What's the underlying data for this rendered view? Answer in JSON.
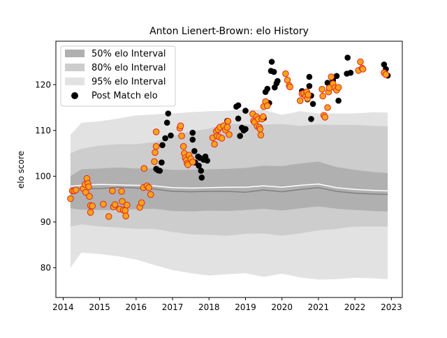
{
  "chart_data": {
    "type": "scatter",
    "title": "Anton Lienert-Brown: elo History",
    "xlabel": "",
    "ylabel": "elo score",
    "xlim": [
      2013.8,
      2023.3
    ],
    "ylim": [
      73.5,
      129.5
    ],
    "x_ticks": [
      2014,
      2015,
      2016,
      2017,
      2018,
      2019,
      2020,
      2021,
      2022,
      2023
    ],
    "y_ticks": [
      80,
      90,
      100,
      110,
      120
    ],
    "grid": false,
    "legend_position": "upper-left",
    "legend": [
      {
        "label": "50% elo Interval",
        "kind": "band",
        "color": "#b0b0b0"
      },
      {
        "label": "80% elo Interval",
        "kind": "band",
        "color": "#cdcdcd"
      },
      {
        "label": "95% elo Interval",
        "kind": "band",
        "color": "#e2e2e2"
      },
      {
        "label": "Post Match elo",
        "kind": "marker",
        "color": "#000000"
      }
    ],
    "bands": {
      "x": [
        2014.2,
        2014.5,
        2015.0,
        2015.5,
        2016.0,
        2016.5,
        2017.0,
        2017.5,
        2018.0,
        2018.5,
        2019.0,
        2019.5,
        2020.0,
        2020.5,
        2021.0,
        2021.5,
        2022.0,
        2022.5,
        2022.9
      ],
      "mean": [
        97.0,
        97.3,
        97.3,
        97.6,
        97.4,
        97.2,
        96.7,
        96.6,
        96.7,
        96.7,
        96.5,
        97.0,
        96.6,
        97.1,
        97.5,
        96.7,
        96.3,
        96.1,
        96.0
      ],
      "median": [
        97.8,
        98.0,
        98.2,
        98.1,
        98.0,
        97.9,
        97.5,
        97.4,
        97.5,
        97.6,
        97.6,
        97.9,
        97.6,
        98.0,
        98.3,
        97.5,
        97.1,
        96.9,
        96.8
      ],
      "p25": [
        93.0,
        92.7,
        92.6,
        92.6,
        92.8,
        92.9,
        92.4,
        92.3,
        92.5,
        92.4,
        92.6,
        92.9,
        92.5,
        93.0,
        93.4,
        92.9,
        92.6,
        92.4,
        92.3
      ],
      "p75": [
        100.0,
        101.5,
        101.7,
        101.9,
        101.7,
        101.7,
        101.4,
        101.4,
        101.5,
        101.6,
        101.8,
        102.3,
        102.2,
        102.8,
        103.2,
        102.0,
        101.4,
        100.9,
        100.7
      ],
      "p10": [
        89.0,
        89.5,
        89.0,
        88.8,
        88.5,
        88.5,
        87.8,
        87.3,
        87.2,
        87.0,
        87.4,
        87.5,
        87.0,
        87.5,
        88.2,
        88.5,
        89.0,
        89.0,
        89.0
      ],
      "p90": [
        105.0,
        106.0,
        106.7,
        107.0,
        107.0,
        107.5,
        108.8,
        109.8,
        110.4,
        111.5,
        111.3,
        111.3,
        111.4,
        111.0,
        111.3,
        111.2,
        111.2,
        111.0,
        110.9
      ],
      "p025": [
        80.0,
        83.3,
        83.0,
        82.5,
        81.8,
        80.6,
        79.5,
        78.8,
        78.3,
        78.6,
        78.8,
        78.0,
        78.7,
        77.9,
        77.4,
        77.5,
        77.8,
        77.7,
        77.5
      ],
      "p975": [
        109.0,
        111.7,
        112.0,
        112.6,
        113.3,
        113.5,
        113.7,
        114.0,
        114.2,
        114.3,
        114.6,
        114.5,
        113.4,
        114.2,
        113.7,
        113.7,
        113.7,
        114.0,
        113.9
      ]
    },
    "series": [
      {
        "name": "Post Match elo",
        "marker": "black",
        "points": [
          [
            2016.55,
            101.6
          ],
          [
            2016.6,
            101.3
          ],
          [
            2016.65,
            101.2
          ],
          [
            2016.7,
            103.0
          ],
          [
            2016.72,
            106.8
          ],
          [
            2016.8,
            108.3
          ],
          [
            2016.85,
            111.7
          ],
          [
            2016.88,
            113.7
          ],
          [
            2016.95,
            108.9
          ],
          [
            2017.55,
            109.5
          ],
          [
            2017.55,
            108.0
          ],
          [
            2017.6,
            105.5
          ],
          [
            2017.62,
            103.0
          ],
          [
            2017.7,
            104.3
          ],
          [
            2017.72,
            102.3
          ],
          [
            2017.75,
            104.0
          ],
          [
            2017.78,
            101.2
          ],
          [
            2017.8,
            99.7
          ],
          [
            2017.85,
            103.6
          ],
          [
            2017.9,
            104.3
          ],
          [
            2017.95,
            103.4
          ],
          [
            2018.5,
            112.1
          ],
          [
            2018.75,
            115.2
          ],
          [
            2018.8,
            115.5
          ],
          [
            2018.8,
            112.6
          ],
          [
            2018.85,
            108.8
          ],
          [
            2018.9,
            110.6
          ],
          [
            2018.95,
            110.0
          ],
          [
            2019.0,
            114.3
          ],
          [
            2019.0,
            110.3
          ],
          [
            2019.5,
            112.7
          ],
          [
            2019.55,
            118.4
          ],
          [
            2019.6,
            119.1
          ],
          [
            2019.65,
            116.0
          ],
          [
            2019.7,
            123.0
          ],
          [
            2019.72,
            125.0
          ],
          [
            2019.78,
            122.8
          ],
          [
            2019.8,
            119.4
          ],
          [
            2019.85,
            120.3
          ],
          [
            2019.88,
            120.8
          ],
          [
            2020.55,
            118.6
          ],
          [
            2020.7,
            116.8
          ],
          [
            2020.75,
            119.7
          ],
          [
            2020.75,
            121.7
          ],
          [
            2020.8,
            117.6
          ],
          [
            2020.8,
            112.5
          ],
          [
            2020.85,
            115.8
          ],
          [
            2021.25,
            120.4
          ],
          [
            2021.4,
            121.0
          ],
          [
            2021.5,
            121.9
          ],
          [
            2021.55,
            116.5
          ],
          [
            2021.78,
            122.4
          ],
          [
            2021.8,
            125.9
          ],
          [
            2021.88,
            122.6
          ],
          [
            2022.8,
            124.4
          ],
          [
            2022.85,
            123.4
          ],
          [
            2022.9,
            122.0
          ]
        ]
      },
      {
        "name": "",
        "marker": "orange",
        "points": [
          [
            2014.2,
            95.1
          ],
          [
            2014.25,
            96.8
          ],
          [
            2014.3,
            96.8
          ],
          [
            2014.35,
            97.0
          ],
          [
            2014.55,
            97.3
          ],
          [
            2014.6,
            98.2
          ],
          [
            2014.62,
            96.5
          ],
          [
            2014.65,
            99.5
          ],
          [
            2014.68,
            98.4
          ],
          [
            2014.7,
            97.7
          ],
          [
            2014.72,
            95.6
          ],
          [
            2014.75,
            93.6
          ],
          [
            2014.75,
            92.1
          ],
          [
            2014.8,
            93.5
          ],
          [
            2015.1,
            93.9
          ],
          [
            2015.25,
            91.2
          ],
          [
            2015.35,
            96.8
          ],
          [
            2015.38,
            93.3
          ],
          [
            2015.42,
            93.8
          ],
          [
            2015.55,
            92.8
          ],
          [
            2015.6,
            96.7
          ],
          [
            2015.62,
            94.5
          ],
          [
            2015.65,
            92.6
          ],
          [
            2015.7,
            92.5
          ],
          [
            2015.72,
            91.3
          ],
          [
            2015.75,
            93.7
          ],
          [
            2016.1,
            93.2
          ],
          [
            2016.15,
            94.2
          ],
          [
            2016.2,
            97.5
          ],
          [
            2016.22,
            101.7
          ],
          [
            2016.3,
            97.9
          ],
          [
            2016.35,
            97.5
          ],
          [
            2016.4,
            96.0
          ],
          [
            2016.5,
            103.2
          ],
          [
            2016.52,
            105.2
          ],
          [
            2016.55,
            106.5
          ],
          [
            2016.55,
            109.7
          ],
          [
            2017.2,
            110.5
          ],
          [
            2017.22,
            111.0
          ],
          [
            2017.25,
            108.8
          ],
          [
            2017.3,
            106.5
          ],
          [
            2017.32,
            105.0
          ],
          [
            2017.35,
            104.0
          ],
          [
            2017.38,
            103.5
          ],
          [
            2017.4,
            102.8
          ],
          [
            2017.42,
            102.5
          ],
          [
            2017.45,
            104.6
          ],
          [
            2017.5,
            103.8
          ],
          [
            2017.55,
            103.1
          ],
          [
            2018.1,
            108.4
          ],
          [
            2018.15,
            107.0
          ],
          [
            2018.2,
            109.8
          ],
          [
            2018.22,
            108.8
          ],
          [
            2018.25,
            110.2
          ],
          [
            2018.28,
            108.6
          ],
          [
            2018.3,
            110.7
          ],
          [
            2018.35,
            108.3
          ],
          [
            2018.4,
            111.0
          ],
          [
            2018.45,
            110.1
          ],
          [
            2018.5,
            110.7
          ],
          [
            2018.52,
            112.0
          ],
          [
            2018.55,
            109.1
          ],
          [
            2019.2,
            113.6
          ],
          [
            2019.22,
            112.1
          ],
          [
            2019.25,
            111.8
          ],
          [
            2019.3,
            113.0
          ],
          [
            2019.32,
            110.9
          ],
          [
            2019.35,
            112.5
          ],
          [
            2019.38,
            110.7
          ],
          [
            2019.4,
            110.3
          ],
          [
            2019.42,
            109.0
          ],
          [
            2019.45,
            112.5
          ],
          [
            2019.48,
            113.0
          ],
          [
            2019.5,
            115.2
          ],
          [
            2019.55,
            116.3
          ],
          [
            2019.6,
            115.4
          ],
          [
            2020.1,
            122.4
          ],
          [
            2020.15,
            121.0
          ],
          [
            2020.2,
            119.8
          ],
          [
            2020.22,
            119.5
          ],
          [
            2020.5,
            116.5
          ],
          [
            2020.55,
            118.0
          ],
          [
            2020.6,
            118.1
          ],
          [
            2020.65,
            117.5
          ],
          [
            2020.68,
            118.4
          ],
          [
            2020.7,
            117.0
          ],
          [
            2020.72,
            117.8
          ],
          [
            2021.1,
            119.0
          ],
          [
            2021.12,
            117.5
          ],
          [
            2021.15,
            113.3
          ],
          [
            2021.18,
            112.9
          ],
          [
            2021.25,
            115.0
          ],
          [
            2021.28,
            118.4
          ],
          [
            2021.3,
            119.3
          ],
          [
            2021.35,
            121.7
          ],
          [
            2021.4,
            120.2
          ],
          [
            2021.45,
            119.3
          ],
          [
            2021.5,
            118.8
          ],
          [
            2021.55,
            119.4
          ],
          [
            2022.1,
            123.1
          ],
          [
            2022.15,
            125.0
          ],
          [
            2022.2,
            123.6
          ],
          [
            2022.22,
            123.4
          ],
          [
            2022.8,
            122.6
          ],
          [
            2022.85,
            122.2
          ]
        ]
      }
    ]
  }
}
